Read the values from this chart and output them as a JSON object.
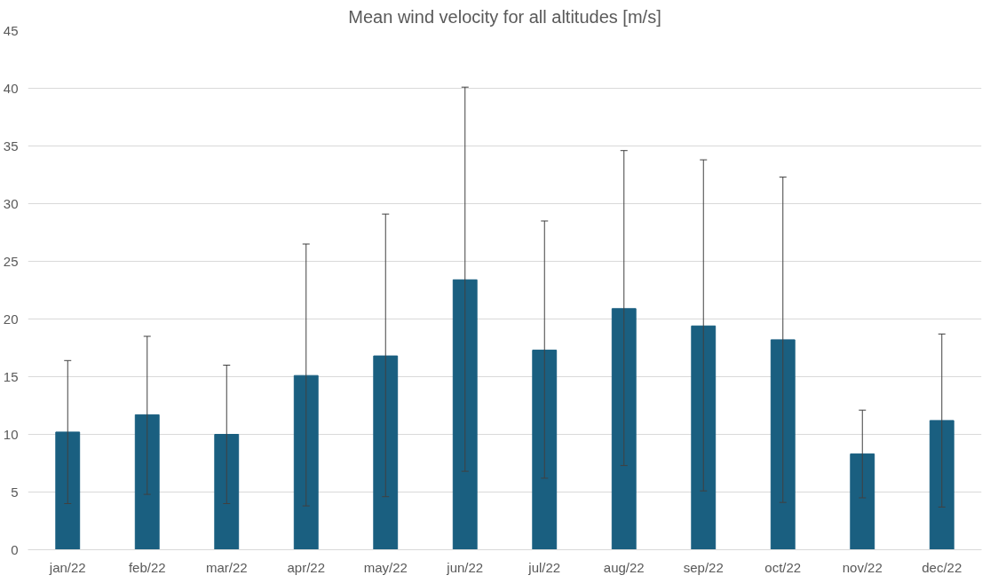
{
  "chart_data": {
    "type": "bar",
    "title": "Mean wind velocity for all altitudes [m/s]",
    "categories": [
      "jan/22",
      "feb/22",
      "mar/22",
      "apr/22",
      "may/22",
      "jun/22",
      "jul/22",
      "aug/22",
      "sep/22",
      "oct/22",
      "nov/22",
      "dec/22"
    ],
    "values": [
      10.2,
      11.7,
      10.0,
      15.1,
      16.8,
      23.4,
      17.3,
      20.9,
      19.4,
      18.2,
      8.3,
      11.2
    ],
    "errors": [
      [
        4.0,
        16.4
      ],
      [
        4.8,
        18.5
      ],
      [
        4.0,
        16.0
      ],
      [
        3.8,
        26.5
      ],
      [
        4.6,
        29.1
      ],
      [
        6.8,
        40.1
      ],
      [
        6.2,
        28.5
      ],
      [
        7.3,
        34.6
      ],
      [
        5.1,
        33.8
      ],
      [
        4.1,
        32.3
      ],
      [
        4.5,
        12.1
      ],
      [
        3.7,
        18.7
      ]
    ],
    "color": "#1a5f80",
    "ylim": [
      0,
      45
    ],
    "yticks": [
      0,
      5,
      10,
      15,
      20,
      25,
      30,
      35,
      40,
      45
    ],
    "grid": "y"
  }
}
